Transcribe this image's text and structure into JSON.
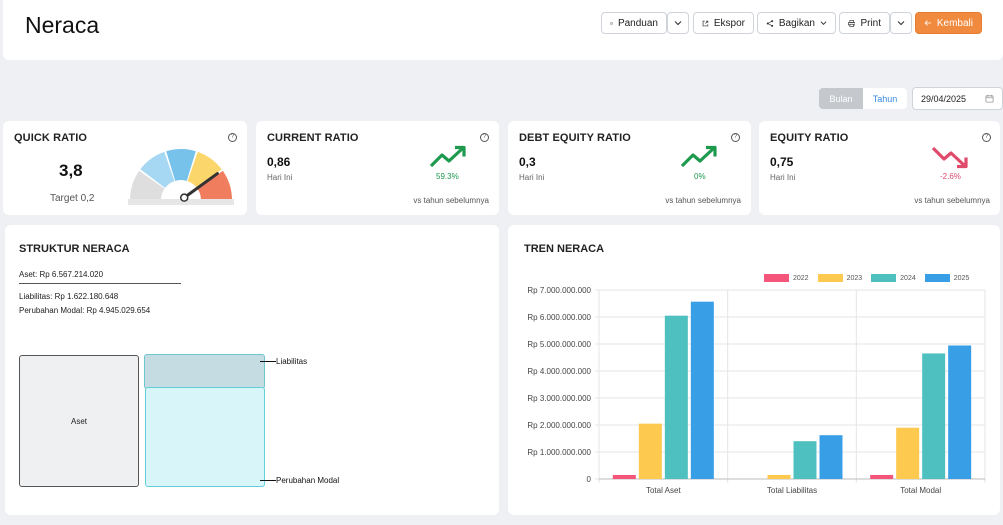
{
  "header": {
    "title": "Neraca",
    "buttons": {
      "panduan": "Panduan",
      "ekspor": "Ekspor",
      "bagikan": "Bagikan",
      "print": "Print",
      "kembali": "Kembali"
    }
  },
  "filter": {
    "bulan": "Bulan",
    "tahun": "Tahun",
    "date": "29/04/2025"
  },
  "kpis": {
    "quick_ratio": {
      "title": "QUICK RATIO",
      "value": "3,8",
      "target": "Target 0,2",
      "gauge_level": 0.8
    },
    "current_ratio": {
      "title": "CURRENT RATIO",
      "value": "0,86",
      "sub": "Hari Ini",
      "change": "59.3%",
      "direction": "up",
      "foot": "vs tahun sebelumnya",
      "color": "#1e9a4f"
    },
    "debt_equity_ratio": {
      "title": "DEBT EQUITY RATIO",
      "value": "0,3",
      "sub": "Hari Ini",
      "change": "0%",
      "direction": "up",
      "foot": "vs tahun sebelumnya",
      "color": "#1e9a4f"
    },
    "equity_ratio": {
      "title": "EQUITY RATIO",
      "value": "0,75",
      "sub": "Hari Ini",
      "change": "-2.6%",
      "direction": "down",
      "foot": "vs tahun sebelumnya",
      "color": "#e04a6b"
    }
  },
  "struktur": {
    "title": "STRUKTUR NERACA",
    "aset_line": "Aset: Rp 6.567.214.020",
    "liabilitas_line": "Liabilitas: Rp 1.622.180.648",
    "modal_line": "Perubahan Modal: Rp 4.945.029.654",
    "box_aset": "Aset",
    "label_liabilitas": "Liabilitas",
    "label_modal": "Perubahan Modal"
  },
  "tren": {
    "title": "TREN NERACA"
  },
  "chart_data": {
    "type": "bar",
    "categories": [
      "Total Aset",
      "Total Liabilitas",
      "Total Modal"
    ],
    "series": [
      {
        "name": "2022",
        "color": "#f5557a",
        "values": [
          150000000,
          0,
          150000000
        ]
      },
      {
        "name": "2023",
        "color": "#fdc94f",
        "values": [
          2050000000,
          150000000,
          1900000000
        ]
      },
      {
        "name": "2024",
        "color": "#4fc0c0",
        "values": [
          6050000000,
          1400000000,
          4650000000
        ]
      },
      {
        "name": "2025",
        "color": "#389fe7",
        "values": [
          6567214020,
          1622180648,
          4945029654
        ]
      }
    ],
    "ylim": [
      0,
      7000000000
    ],
    "yticks": [
      "0",
      "Rp 1.000.000.000",
      "Rp 2.000.000.000",
      "Rp 3.000.000.000",
      "Rp 4.000.000.000",
      "Rp 5.000.000.000",
      "Rp 6.000.000.000",
      "Rp 7.000.000.000"
    ],
    "grid": true,
    "legend": "top-right"
  }
}
